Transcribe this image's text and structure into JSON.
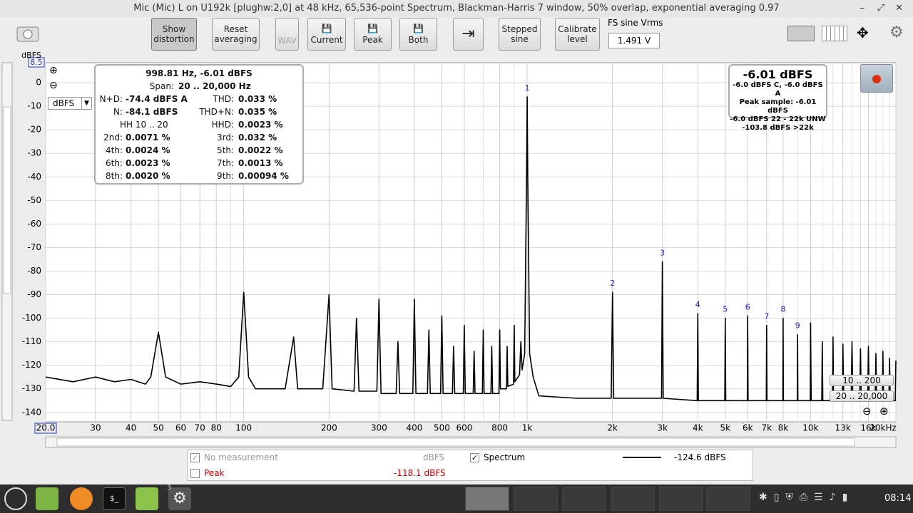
{
  "window": {
    "title": "Mic (Mic) L on U192k [plughw:2,0] at 48 kHz, 65,536-point Spectrum, Blackman-Harris 7 window, 50% overlap, exponential averaging 0.97"
  },
  "toolbar": {
    "show_distortion": "Show\ndistortion",
    "reset_averaging": "Reset\naveraging",
    "wav": "WAV",
    "current": "Current",
    "peak": "Peak",
    "both": "Both",
    "stepped_sine": "Stepped\nsine",
    "calibrate_level": "Calibrate\nlevel",
    "fs_sine_label": "FS sine Vrms",
    "fs_sine_value": "1.491 V"
  },
  "chart_data": {
    "type": "line",
    "xscale": "log",
    "grid": true,
    "y_unit": "dBFS",
    "y_unit_selector": "dBFS",
    "xlim": [
      20,
      20000
    ],
    "ylim": [
      -144,
      8.5
    ],
    "yticks": [
      0,
      -10,
      -20,
      -30,
      -40,
      -50,
      -60,
      -70,
      -80,
      -90,
      -100,
      -110,
      -120,
      -130,
      -140
    ],
    "xticks": [
      {
        "value": 20,
        "label": "20.0"
      },
      30,
      40,
      50,
      60,
      70,
      80,
      100,
      200,
      300,
      400,
      500,
      600,
      800,
      {
        "value": 1000,
        "label": "1k"
      },
      {
        "value": 2000,
        "label": "2k"
      },
      {
        "value": 3000,
        "label": "3k"
      },
      {
        "value": 4000,
        "label": "4k"
      },
      {
        "value": 5000,
        "label": "5k"
      },
      {
        "value": 6000,
        "label": "6k"
      },
      {
        "value": 7000,
        "label": "7k"
      },
      {
        "value": 8000,
        "label": "8k"
      },
      {
        "value": 10000,
        "label": "10k"
      },
      {
        "value": 13000,
        "label": "13k"
      },
      {
        "value": 16000,
        "label": "16k"
      },
      {
        "value": 20000,
        "label": "20kHz"
      }
    ],
    "minor_xticks": [
      90,
      700,
      900,
      9000,
      11000,
      12000,
      14000,
      15000,
      17000,
      18000,
      19000
    ],
    "series": [
      {
        "name": "Spectrum",
        "color": "#000000",
        "x": [
          20,
          25,
          30,
          35,
          40,
          45,
          47,
          50,
          53,
          60,
          70,
          80,
          90,
          96,
          100,
          104,
          110,
          140,
          150,
          155,
          190,
          200,
          205,
          245,
          250,
          255,
          295,
          300,
          305,
          345,
          350,
          355,
          395,
          400,
          405,
          445,
          450,
          455,
          495,
          500,
          505,
          545,
          550,
          555,
          595,
          600,
          605,
          645,
          650,
          655,
          695,
          700,
          705,
          745,
          750,
          755,
          795,
          800,
          805,
          845,
          850,
          855,
          895,
          900,
          905,
          940,
          950,
          960,
          980,
          995,
          1000,
          1005,
          1020,
          1050,
          1100,
          1500,
          1980,
          2000,
          2020,
          2500,
          2980,
          3000,
          3020,
          3980,
          4000,
          4020,
          4980,
          5000,
          5020,
          5980,
          6000,
          6020,
          6980,
          7000,
          7020,
          7980,
          8000,
          8020,
          8980,
          9000,
          9020,
          9980,
          10000,
          10050,
          10950,
          11000,
          11050,
          11950,
          12000,
          12050,
          12950,
          13000,
          13100,
          13900,
          14000,
          14100,
          14900,
          15000,
          15100,
          15900,
          16000,
          16100,
          16900,
          17000,
          17100,
          17900,
          18000,
          18100,
          18900,
          19000,
          19100,
          19900,
          20000
        ],
        "values": [
          -125,
          -127,
          -125,
          -127,
          -126,
          -128,
          -125,
          -106,
          -125,
          -128,
          -127,
          -128,
          -129,
          -125,
          -89,
          -125,
          -130,
          -130,
          -108,
          -130,
          -130,
          -90,
          -130,
          -131,
          -100,
          -131,
          -131,
          -92,
          -132,
          -132,
          -110,
          -132,
          -132,
          -92,
          -132,
          -132,
          -105,
          -132,
          -132,
          -99,
          -132,
          -132,
          -112,
          -132,
          -132,
          -103,
          -132,
          -132,
          -114,
          -132,
          -132,
          -105,
          -132,
          -132,
          -112,
          -132,
          -132,
          -105,
          -130,
          -130,
          -112,
          -129,
          -128,
          -103,
          -127,
          -124,
          -110,
          -122,
          -115,
          -40,
          -6,
          -40,
          -115,
          -125,
          -133,
          -134,
          -134,
          -89,
          -134,
          -134,
          -134,
          -76,
          -134,
          -135,
          -98,
          -135,
          -135,
          -100,
          -135,
          -135,
          -99,
          -135,
          -135,
          -103,
          -135,
          -135,
          -100,
          -135,
          -135,
          -107,
          -135,
          -135,
          -102,
          -135,
          -135,
          -110,
          -135,
          -135,
          -108,
          -135,
          -135,
          -111,
          -135,
          -135,
          -110,
          -135,
          -135,
          -113,
          -135,
          -135,
          -112,
          -135,
          -135,
          -115,
          -135,
          -135,
          -114,
          -135,
          -135,
          -117,
          -135,
          -135,
          -118
        ]
      }
    ],
    "annotations": [
      {
        "label": "1",
        "x": 1000
      },
      {
        "label": "2",
        "x": 2000
      },
      {
        "label": "3",
        "x": 3000
      },
      {
        "label": "4",
        "x": 4000
      },
      {
        "label": "5",
        "x": 5000
      },
      {
        "label": "6",
        "x": 6000
      },
      {
        "label": "7",
        "x": 7000
      },
      {
        "label": "8",
        "x": 8000
      },
      {
        "label": "9",
        "x": 9000
      }
    ],
    "annotation_color": "#1a1ab4"
  },
  "info_panel": {
    "header": "998.81 Hz, -6.01 dBFS",
    "span_label": "Span:",
    "span": "20 .. 20,000 Hz",
    "rows": [
      [
        "N+D:",
        "-74.4 dBFS A",
        "THD:",
        "0.033 %"
      ],
      [
        "N:",
        "-84.1 dBFS",
        "THD+N:",
        "0.035 %"
      ],
      [
        "HH 10 .. 20",
        "HHD:",
        "0.0023 %"
      ],
      [
        "2nd:",
        "0.0071 %",
        "3rd:",
        "0.032 %"
      ],
      [
        "4th:",
        "0.0024 %",
        "5th:",
        "0.0022 %"
      ],
      [
        "6th:",
        "0.0023 %",
        "7th:",
        "0.0013 %"
      ],
      [
        "8th:",
        "0.0020 %",
        "9th:",
        "0.00094 %"
      ]
    ]
  },
  "level_panel": {
    "main": "-6.01 dBFS",
    "lines": [
      "-6.0 dBFS C, -6.0 dBFS A",
      "Peak sample: -6.01 dBFS",
      "-6.0 dBFS 22 - 22k UNW",
      "-103.8 dBFS >22k"
    ]
  },
  "range_buttons": [
    "10 .. 200",
    "20 .. 20,000"
  ],
  "legend": {
    "no_measurement": "No measurement",
    "no_measurement_unit": "dBFS",
    "spectrum_reading": "-124.6 dBFS",
    "peak": "Peak",
    "peak_reading": "-118.1 dBFS",
    "peak_color": "#cc0000"
  },
  "taskbar": {
    "badge": "3",
    "clock": "08:14"
  }
}
